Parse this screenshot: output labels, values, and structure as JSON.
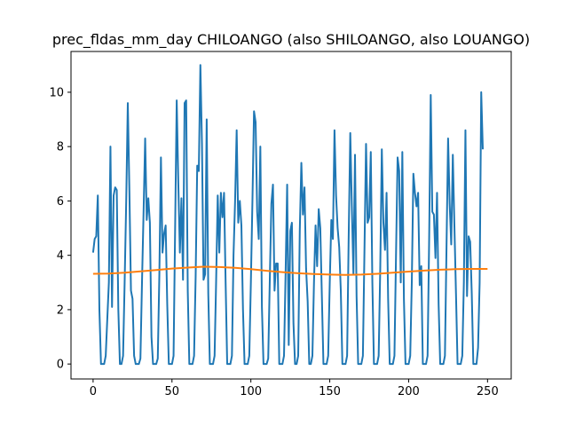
{
  "chart_data": {
    "type": "line",
    "title": "prec_fldas_mm_day CHILOANGO (also SHILOANGO, also LOUANGO)",
    "xlabel": "",
    "ylabel": "",
    "xlim": [
      -14,
      265
    ],
    "ylim": [
      -0.55,
      11.5
    ],
    "xticks": [
      0,
      50,
      100,
      150,
      200,
      250
    ],
    "yticks": [
      0,
      2,
      4,
      6,
      8,
      10
    ],
    "grid": false,
    "series": [
      {
        "color": "#1f77b4",
        "points": [
          [
            0,
            4.1
          ],
          [
            1,
            4.6
          ],
          [
            2,
            4.7
          ],
          [
            3,
            6.2
          ],
          [
            4,
            2.0
          ],
          [
            5,
            0.0
          ],
          [
            6,
            0.0
          ],
          [
            7,
            0.0
          ],
          [
            8,
            0.3
          ],
          [
            10,
            3.0
          ],
          [
            11,
            8.0
          ],
          [
            12,
            2.1
          ],
          [
            13,
            6.2
          ],
          [
            14,
            6.5
          ],
          [
            15,
            6.4
          ],
          [
            16,
            2.0
          ],
          [
            17,
            0.0
          ],
          [
            18,
            0.0
          ],
          [
            19,
            0.3
          ],
          [
            20,
            3.0
          ],
          [
            21,
            6.0
          ],
          [
            22,
            9.6
          ],
          [
            23,
            6.4
          ],
          [
            24,
            2.7
          ],
          [
            25,
            2.4
          ],
          [
            26,
            0.3
          ],
          [
            27,
            0.0
          ],
          [
            29,
            0.0
          ],
          [
            30,
            0.2
          ],
          [
            31,
            3.0
          ],
          [
            32,
            5.6
          ],
          [
            33,
            8.3
          ],
          [
            34,
            5.3
          ],
          [
            35,
            6.1
          ],
          [
            36,
            5.2
          ],
          [
            37,
            1.0
          ],
          [
            38,
            0.0
          ],
          [
            40,
            0.0
          ],
          [
            41,
            0.2
          ],
          [
            42,
            3.3
          ],
          [
            43,
            7.6
          ],
          [
            44,
            4.1
          ],
          [
            45,
            4.8
          ],
          [
            46,
            5.1
          ],
          [
            47,
            2.2
          ],
          [
            48,
            0.0
          ],
          [
            50,
            0.0
          ],
          [
            51,
            0.3
          ],
          [
            52,
            5.0
          ],
          [
            53,
            9.7
          ],
          [
            54,
            6.7
          ],
          [
            55,
            4.1
          ],
          [
            56,
            6.1
          ],
          [
            57,
            3.1
          ],
          [
            58,
            9.6
          ],
          [
            59,
            9.7
          ],
          [
            60,
            2.7
          ],
          [
            61,
            0.0
          ],
          [
            63,
            0.0
          ],
          [
            64,
            0.3
          ],
          [
            65,
            3.2
          ],
          [
            66,
            7.3
          ],
          [
            67,
            7.1
          ],
          [
            68,
            11.0
          ],
          [
            69,
            8.1
          ],
          [
            70,
            3.1
          ],
          [
            71,
            3.3
          ],
          [
            72,
            9.0
          ],
          [
            73,
            2.6
          ],
          [
            74,
            0.0
          ],
          [
            76,
            0.0
          ],
          [
            77,
            0.3
          ],
          [
            78,
            3.1
          ],
          [
            79,
            6.2
          ],
          [
            80,
            4.1
          ],
          [
            81,
            6.3
          ],
          [
            82,
            5.4
          ],
          [
            83,
            6.3
          ],
          [
            84,
            3.0
          ],
          [
            85,
            0.0
          ],
          [
            87,
            0.0
          ],
          [
            88,
            0.3
          ],
          [
            89,
            4.0
          ],
          [
            90,
            6.0
          ],
          [
            91,
            8.6
          ],
          [
            92,
            5.2
          ],
          [
            93,
            6.0
          ],
          [
            94,
            5.1
          ],
          [
            95,
            2.0
          ],
          [
            96,
            0.0
          ],
          [
            98,
            0.0
          ],
          [
            99,
            0.3
          ],
          [
            100,
            3.0
          ],
          [
            101,
            6.0
          ],
          [
            102,
            9.3
          ],
          [
            103,
            8.9
          ],
          [
            104,
            5.6
          ],
          [
            105,
            4.6
          ],
          [
            106,
            8.0
          ],
          [
            107,
            2.1
          ],
          [
            108,
            0.0
          ],
          [
            110,
            0.0
          ],
          [
            111,
            0.2
          ],
          [
            112,
            3.1
          ],
          [
            113,
            5.9
          ],
          [
            114,
            6.6
          ],
          [
            115,
            2.7
          ],
          [
            116,
            3.7
          ],
          [
            117,
            3.7
          ],
          [
            118,
            0.0
          ],
          [
            120,
            0.0
          ],
          [
            121,
            0.3
          ],
          [
            122,
            3.3
          ],
          [
            123,
            6.6
          ],
          [
            124,
            0.7
          ],
          [
            125,
            4.9
          ],
          [
            126,
            5.2
          ],
          [
            127,
            1.5
          ],
          [
            128,
            0.0
          ],
          [
            129,
            0.0
          ],
          [
            130,
            0.3
          ],
          [
            131,
            4.9
          ],
          [
            132,
            7.4
          ],
          [
            133,
            5.5
          ],
          [
            134,
            6.5
          ],
          [
            135,
            3.5
          ],
          [
            136,
            2.3
          ],
          [
            137,
            0.0
          ],
          [
            138,
            0.0
          ],
          [
            139,
            0.3
          ],
          [
            140,
            3.0
          ],
          [
            141,
            5.1
          ],
          [
            142,
            3.6
          ],
          [
            143,
            5.7
          ],
          [
            144,
            5.0
          ],
          [
            145,
            2.5
          ],
          [
            146,
            0.0
          ],
          [
            148,
            0.0
          ],
          [
            149,
            0.3
          ],
          [
            150,
            3.0
          ],
          [
            151,
            5.3
          ],
          [
            152,
            4.6
          ],
          [
            153,
            8.6
          ],
          [
            154,
            6.2
          ],
          [
            155,
            5.0
          ],
          [
            156,
            4.3
          ],
          [
            157,
            2.7
          ],
          [
            158,
            0.0
          ],
          [
            160,
            0.0
          ],
          [
            161,
            0.3
          ],
          [
            162,
            4.7
          ],
          [
            163,
            8.5
          ],
          [
            164,
            5.8
          ],
          [
            165,
            3.3
          ],
          [
            166,
            7.7
          ],
          [
            167,
            2.5
          ],
          [
            168,
            0.0
          ],
          [
            170,
            0.0
          ],
          [
            171,
            0.3
          ],
          [
            172,
            4.2
          ],
          [
            173,
            8.1
          ],
          [
            174,
            5.2
          ],
          [
            175,
            5.4
          ],
          [
            176,
            7.8
          ],
          [
            177,
            3.0
          ],
          [
            178,
            0.0
          ],
          [
            180,
            0.0
          ],
          [
            181,
            0.3
          ],
          [
            182,
            3.5
          ],
          [
            183,
            7.9
          ],
          [
            184,
            5.2
          ],
          [
            185,
            4.2
          ],
          [
            186,
            6.3
          ],
          [
            187,
            2.4
          ],
          [
            188,
            0.0
          ],
          [
            190,
            0.0
          ],
          [
            191,
            0.3
          ],
          [
            192,
            4.0
          ],
          [
            193,
            7.6
          ],
          [
            194,
            7.1
          ],
          [
            195,
            3.0
          ],
          [
            196,
            7.8
          ],
          [
            197,
            2.4
          ],
          [
            198,
            0.0
          ],
          [
            200,
            0.0
          ],
          [
            201,
            0.3
          ],
          [
            202,
            3.0
          ],
          [
            203,
            7.0
          ],
          [
            204,
            6.3
          ],
          [
            205,
            5.8
          ],
          [
            206,
            6.3
          ],
          [
            207,
            2.9
          ],
          [
            208,
            3.6
          ],
          [
            209,
            0.0
          ],
          [
            211,
            0.0
          ],
          [
            212,
            0.3
          ],
          [
            213,
            4.6
          ],
          [
            214,
            9.9
          ],
          [
            215,
            5.6
          ],
          [
            216,
            5.5
          ],
          [
            217,
            3.9
          ],
          [
            218,
            6.3
          ],
          [
            219,
            2.2
          ],
          [
            220,
            0.0
          ],
          [
            222,
            0.0
          ],
          [
            223,
            0.3
          ],
          [
            224,
            4.3
          ],
          [
            225,
            8.3
          ],
          [
            226,
            5.9
          ],
          [
            227,
            4.4
          ],
          [
            228,
            7.7
          ],
          [
            229,
            5.1
          ],
          [
            230,
            2.6
          ],
          [
            231,
            0.0
          ],
          [
            233,
            0.0
          ],
          [
            234,
            0.3
          ],
          [
            235,
            3.0
          ],
          [
            236,
            8.6
          ],
          [
            237,
            2.5
          ],
          [
            238,
            4.7
          ],
          [
            239,
            4.5
          ],
          [
            240,
            2.6
          ],
          [
            241,
            0.0
          ],
          [
            243,
            0.0
          ],
          [
            244,
            0.6
          ],
          [
            245,
            3.0
          ],
          [
            246,
            10.0
          ],
          [
            247,
            7.9
          ]
        ]
      },
      {
        "color": "#ff7f0e",
        "points": [
          [
            0,
            3.32
          ],
          [
            10,
            3.33
          ],
          [
            20,
            3.36
          ],
          [
            30,
            3.41
          ],
          [
            40,
            3.46
          ],
          [
            50,
            3.51
          ],
          [
            60,
            3.55
          ],
          [
            70,
            3.58
          ],
          [
            80,
            3.57
          ],
          [
            90,
            3.54
          ],
          [
            100,
            3.49
          ],
          [
            110,
            3.43
          ],
          [
            120,
            3.38
          ],
          [
            130,
            3.34
          ],
          [
            140,
            3.31
          ],
          [
            150,
            3.29
          ],
          [
            160,
            3.28
          ],
          [
            170,
            3.29
          ],
          [
            180,
            3.32
          ],
          [
            190,
            3.36
          ],
          [
            200,
            3.4
          ],
          [
            210,
            3.44
          ],
          [
            220,
            3.47
          ],
          [
            230,
            3.49
          ],
          [
            240,
            3.5
          ],
          [
            250,
            3.5
          ]
        ]
      }
    ]
  }
}
